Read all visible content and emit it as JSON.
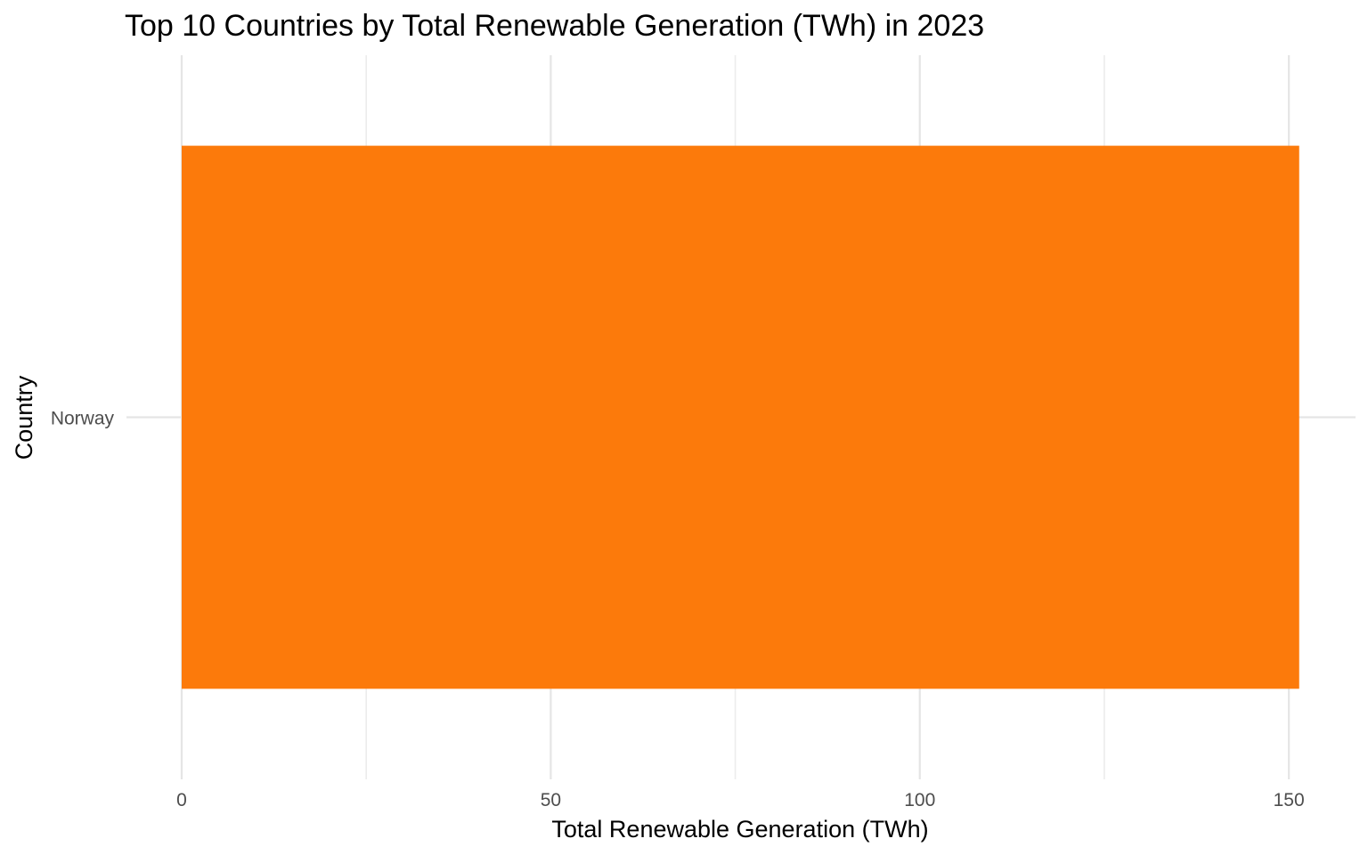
{
  "chart_data": {
    "type": "bar",
    "orientation": "horizontal",
    "title": "Top 10 Countries by Total Renewable Generation (TWh) in 2023",
    "xlabel": "Total Renewable Generation (TWh)",
    "ylabel": "Country",
    "categories": [
      "Norway"
    ],
    "values": [
      151.4
    ],
    "xlim": [
      0,
      153
    ],
    "xticks": [
      0,
      50,
      100,
      150
    ],
    "x_minor_ticks": [
      25,
      75,
      125
    ],
    "grid": true,
    "legend": "none",
    "colors": {
      "bar": "#fc7a0b",
      "grid": "#e5e5e5",
      "tick_text": "#4d4d4d",
      "text": "#000000"
    }
  }
}
